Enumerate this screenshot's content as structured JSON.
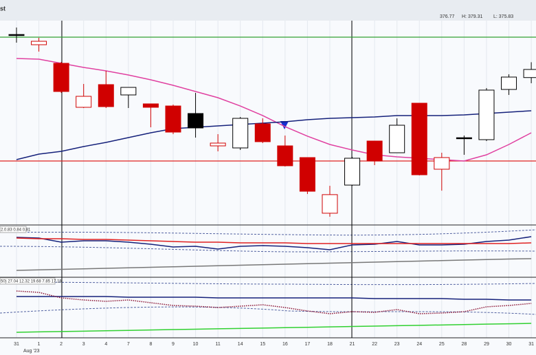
{
  "header": {
    "symbol": "st",
    "open": "376.77",
    "high": "H: 379.31",
    "low": "L: 375.83"
  },
  "chart_data": [
    {
      "type": "candlestick",
      "month_label": "Aug '23",
      "categories": [
        "31",
        "1",
        "2",
        "3",
        "4",
        "7",
        "8",
        "9",
        "10",
        "11",
        "14",
        "15",
        "16",
        "17",
        "18",
        "21",
        "22",
        "23",
        "24",
        "25",
        "28",
        "29",
        "30",
        "31"
      ],
      "open": [
        383.9,
        382.21,
        379.13,
        371.84,
        375.6,
        373.89,
        372.41,
        372.06,
        370.81,
        365.45,
        365.11,
        369.1,
        365.45,
        363.51,
        354.29,
        358.95,
        366.25,
        364.31,
        372.52,
        361.58,
        366.8,
        366.48,
        374.8,
        376.77
      ],
      "high": [
        385.06,
        383.35,
        379.36,
        375.71,
        377.88,
        375.14,
        372.41,
        372.29,
        374.23,
        367.39,
        370.24,
        370.01,
        367.16,
        363.51,
        358.83,
        363.63,
        366.25,
        370.01,
        372.52,
        364.31,
        367.16,
        375.03,
        377.31,
        379.31
      ],
      "low": [
        382.55,
        381.07,
        374.23,
        371.72,
        371.72,
        371.72,
        368.53,
        367.39,
        366.82,
        364.54,
        364.77,
        365.91,
        362.03,
        357.47,
        353.71,
        358.83,
        362.26,
        364.31,
        360.56,
        358.03,
        363.97,
        366.25,
        373.89,
        375.83
      ],
      "close": [
        383.81,
        382.78,
        374.46,
        373.66,
        371.95,
        375.14,
        371.84,
        367.73,
        368.42,
        365.91,
        370.01,
        366.14,
        362.15,
        357.93,
        357.37,
        363.4,
        362.94,
        368.87,
        360.66,
        363.51,
        366.71,
        374.69,
        376.85,
        378.11
      ],
      "colors": [
        "#000000",
        "#d00000",
        "#d00000",
        "#d00000",
        "#d00000",
        "#000000",
        "#d00000",
        "#d00000",
        "#000000",
        "#d00000",
        "#000000",
        "#d00000",
        "#d00000",
        "#d00000",
        "#d00000",
        "#000000",
        "#d00000",
        "#000000",
        "#d00000",
        "#d00000",
        "#000000",
        "#000000",
        "#000000",
        "#000000"
      ],
      "series": [
        {
          "color": "#e040a0",
          "values": [
            379.93,
            379.82,
            379.13,
            378.45,
            377.88,
            377.19,
            376.4,
            375.48,
            374.46,
            373.43,
            372.06,
            370.47,
            368.64,
            367.05,
            365.68,
            364.77,
            363.97,
            363.63,
            363.4,
            363.17,
            362.94,
            363.97,
            365.68,
            367.62
          ]
        },
        {
          "color": "#14207a",
          "values": [
            363.17,
            364.08,
            364.54,
            365.34,
            366.02,
            366.82,
            367.62,
            368.3,
            368.53,
            368.76,
            368.99,
            369.21,
            369.44,
            369.78,
            370.01,
            370.13,
            370.24,
            370.47,
            370.47,
            370.47,
            370.58,
            370.81,
            371.04,
            371.27
          ]
        }
      ],
      "hlines": [
        {
          "value": 383.46,
          "color": "#30a030"
        },
        {
          "value": 362.94,
          "color": "#e02020"
        }
      ],
      "ylim": [
        352.57,
        386.2
      ]
    },
    {
      "type": "line",
      "label": "2.0.83 0.84 0.81",
      "series": [
        {
          "color": "#14207a",
          "values": [
            77.3,
            76,
            68,
            70.7,
            70.7,
            68,
            64,
            58.7,
            60,
            54.7,
            60,
            61.3,
            60,
            57.3,
            53.3,
            62.7,
            64,
            69.3,
            62.7,
            62.7,
            64,
            69.3,
            72,
            78.7
          ]
        },
        {
          "color": "#e02020",
          "values": [
            76,
            74.7,
            74.7,
            73.3,
            73.3,
            72,
            70.7,
            69.3,
            68,
            68,
            66.7,
            66.7,
            66.7,
            65.3,
            65.3,
            65.3,
            65.3,
            65.3,
            65.3,
            65.3,
            65.3,
            65.3,
            65.3,
            66.7
          ]
        },
        {
          "color": "#777777",
          "values": [
            13.3,
            14.3,
            15.3,
            16.3,
            17.3,
            18.3,
            19.3,
            20.3,
            21.3,
            22.3,
            23.3,
            24.3,
            25.3,
            26.3,
            27.3,
            28.3,
            29.3,
            30.3,
            31.3,
            32.3,
            33.3,
            34.3,
            35.3,
            36
          ]
        }
      ],
      "ylim": [
        0,
        100
      ]
    },
    {
      "type": "line",
      "label": "50) 27.04 12.32 19.68 7.85 17.18",
      "series": [
        {
          "color": "#14207a",
          "values": [
            69.4,
            69.4,
            69.4,
            69.4,
            69.4,
            68.2,
            68.2,
            68.2,
            68.2,
            67.1,
            67.1,
            67.1,
            67.1,
            67.1,
            67.1,
            67.1,
            65.9,
            65.9,
            65.9,
            65.9,
            64.7,
            64.7,
            63.5,
            63.5
          ]
        },
        {
          "color": "#8a1030",
          "dotted": true,
          "values": [
            78.8,
            76.5,
            67.1,
            63.5,
            61.2,
            63.5,
            58.8,
            54.1,
            52.9,
            50.6,
            52.9,
            55.3,
            50.6,
            44.7,
            40,
            43.5,
            42.4,
            47.1,
            40,
            41.2,
            43.5,
            51.8,
            54.1,
            57.6
          ]
        },
        {
          "color": "#30d030",
          "values": [
            8.2,
            8.9,
            9.5,
            10.2,
            10.9,
            11.5,
            12.2,
            12.9,
            13.5,
            14.2,
            14.8,
            15.5,
            16.2,
            16.8,
            17.5,
            18.2,
            18.8,
            19.5,
            20.2,
            20.8,
            21.5,
            22.2,
            22.8,
            23.5
          ]
        }
      ],
      "ylim": [
        0,
        100
      ]
    }
  ]
}
